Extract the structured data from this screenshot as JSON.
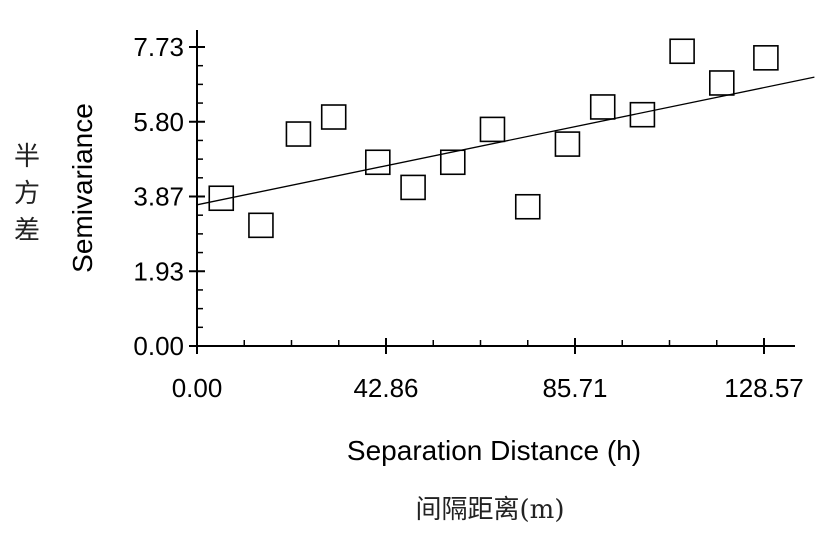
{
  "chart_data": {
    "type": "scatter",
    "xlabel": "Separation Distance (h)",
    "ylabel": "Semivariance",
    "xlabel_cn": "间隔距离(m)",
    "ylabel_cn": "半方差",
    "xlim": [
      0,
      140
    ],
    "ylim": [
      0,
      7.73
    ],
    "x_ticks": [
      "0.00",
      "42.86",
      "85.71",
      "128.57"
    ],
    "y_ticks": [
      "0.00",
      "1.93",
      "3.87",
      "5.80",
      "7.73"
    ],
    "points": [
      {
        "x": 5.5,
        "y": 3.82
      },
      {
        "x": 14.5,
        "y": 3.12
      },
      {
        "x": 23,
        "y": 5.48
      },
      {
        "x": 31,
        "y": 5.92
      },
      {
        "x": 41,
        "y": 4.75
      },
      {
        "x": 49,
        "y": 4.1
      },
      {
        "x": 58,
        "y": 4.75
      },
      {
        "x": 67,
        "y": 5.6
      },
      {
        "x": 75,
        "y": 3.6
      },
      {
        "x": 84,
        "y": 5.22
      },
      {
        "x": 92,
        "y": 6.18
      },
      {
        "x": 101,
        "y": 5.98
      },
      {
        "x": 110,
        "y": 7.62
      },
      {
        "x": 119,
        "y": 6.8
      },
      {
        "x": 129,
        "y": 7.45
      }
    ],
    "fit_line": {
      "x": [
        0,
        140
      ],
      "y": [
        3.65,
        6.95
      ]
    },
    "colors": {
      "marker": "#000000",
      "line": "#000000",
      "background": "#ffffff"
    }
  }
}
